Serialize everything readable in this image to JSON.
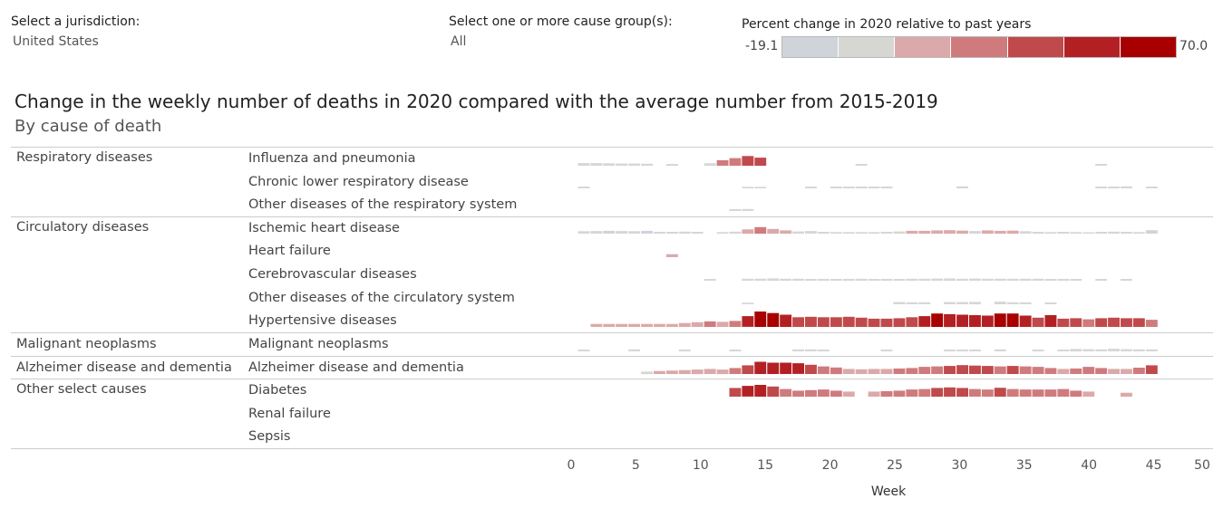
{
  "filters": {
    "jurisdiction": {
      "label": "Select a jurisdiction:",
      "value": "United States"
    },
    "cause_group": {
      "label": "Select one or more cause group(s):",
      "value": "All"
    }
  },
  "legend": {
    "title": "Percent change in 2020 relative to past years",
    "min_label": "-19.1",
    "max_label": "70.0",
    "colors": [
      "#cfd3da",
      "#d6d6d3",
      "#dba9aa",
      "#cf7b7d",
      "#c0494c",
      "#b32024",
      "#a80000"
    ]
  },
  "title": "Change in the weekly number of deaths in 2020 compared with the average number from 2015-2019",
  "subtitle": "By cause of death",
  "chart_data": {
    "type": "heatmap",
    "title": "Change in the weekly number of deaths in 2020 compared with the average number from 2015-2019",
    "subtitle": "By cause of death",
    "xlabel": "Week",
    "x_ticks": [
      "0",
      "5",
      "10",
      "15",
      "20",
      "25",
      "30",
      "35",
      "40",
      "45",
      "50"
    ],
    "xlim": [
      0,
      50
    ],
    "color_scale": {
      "min": -19.1,
      "max": 70.0
    },
    "groups": [
      {
        "name": "Respiratory diseases",
        "causes": [
          {
            "name": "Influenza and pneumonia",
            "weeks": [
              1,
              2,
              3,
              4,
              5,
              6,
              8,
              11,
              12,
              13,
              14,
              15,
              23,
              42
            ],
            "values": [
              -6,
              -6,
              -5,
              -4,
              -4,
              -3,
              -2,
              5,
              20,
              30,
              40,
              32,
              -2,
              -2
            ]
          },
          {
            "name": "Chronic lower respiratory disease",
            "weeks": [
              1,
              14,
              15,
              19,
              21,
              22,
              23,
              24,
              25,
              31,
              42,
              43,
              44,
              46
            ],
            "values": [
              -2,
              -1,
              -1,
              -2,
              -2,
              -2,
              -2,
              -2,
              -2,
              -3,
              -2,
              -2,
              -3,
              -2
            ]
          },
          {
            "name": "Other diseases of the respiratory system",
            "weeks": [
              13,
              14
            ],
            "values": [
              -2,
              -3
            ]
          }
        ]
      },
      {
        "name": "Circulatory diseases",
        "causes": [
          {
            "name": "Ischemic heart disease",
            "weeks": [
              1,
              2,
              3,
              4,
              5,
              6,
              7,
              8,
              9,
              10,
              12,
              13,
              14,
              15,
              16,
              17,
              18,
              19,
              20,
              21,
              22,
              23,
              24,
              25,
              26,
              27,
              28,
              29,
              30,
              31,
              32,
              33,
              34,
              35,
              36,
              37,
              38,
              39,
              40,
              41,
              42,
              43,
              44,
              45,
              46
            ],
            "values": [
              -5,
              -6,
              -7,
              -6,
              -5,
              -7,
              -2,
              -2,
              -3,
              -2,
              -1,
              3,
              14,
              25,
              16,
              9,
              4,
              6,
              2,
              1,
              1,
              1,
              1,
              2,
              4,
              7,
              7,
              9,
              10,
              8,
              6,
              9,
              7,
              8,
              5,
              2,
              1,
              2,
              1,
              0,
              2,
              3,
              2,
              1,
              -10
            ]
          },
          {
            "name": "Heart failure",
            "weeks": [
              8
            ],
            "values": [
              8
            ]
          },
          {
            "name": "Cerebrovascular diseases",
            "weeks": [
              11,
              14,
              15,
              16,
              17,
              18,
              19,
              20,
              21,
              22,
              23,
              24,
              25,
              26,
              27,
              28,
              29,
              30,
              31,
              32,
              33,
              34,
              35,
              36,
              37,
              38,
              39,
              40,
              42,
              44
            ],
            "values": [
              2,
              3,
              3,
              5,
              3,
              3,
              2,
              2,
              2,
              2,
              3,
              2,
              2,
              2,
              3,
              3,
              4,
              5,
              3,
              4,
              3,
              3,
              3,
              3,
              3,
              2,
              2,
              2,
              2,
              2
            ]
          },
          {
            "name": "Other diseases of the circulatory system",
            "weeks": [
              14,
              26,
              27,
              28,
              30,
              31,
              32,
              34,
              35,
              36,
              38
            ],
            "values": [
              -1,
              4,
              3,
              3,
              4,
              4,
              5,
              6,
              3,
              3,
              2
            ]
          },
          {
            "name": "Hypertensive diseases",
            "weeks": [
              2,
              3,
              4,
              5,
              6,
              7,
              8,
              9,
              10,
              11,
              12,
              13,
              14,
              15,
              16,
              17,
              18,
              19,
              20,
              21,
              22,
              23,
              24,
              25,
              26,
              27,
              28,
              29,
              30,
              31,
              32,
              33,
              34,
              35,
              36,
              37,
              38,
              39,
              40,
              41,
              42,
              43,
              44,
              45,
              46
            ],
            "values": [
              8,
              8,
              8,
              8,
              8,
              8,
              8,
              12,
              16,
              20,
              18,
              22,
              45,
              70,
              60,
              52,
              40,
              42,
              40,
              40,
              42,
              38,
              33,
              33,
              35,
              40,
              45,
              58,
              55,
              52,
              50,
              48,
              58,
              58,
              48,
              38,
              50,
              33,
              35,
              30,
              35,
              38,
              35,
              35,
              28
            ]
          }
        ]
      },
      {
        "name": "Malignant neoplasms",
        "causes": [
          {
            "name": "Malignant neoplasms",
            "weeks": [
              1,
              5,
              9,
              13,
              18,
              19,
              20,
              25,
              30,
              31,
              32,
              34,
              37,
              39,
              40,
              41,
              42,
              43,
              44,
              45,
              46
            ],
            "values": [
              -2,
              -3,
              -2,
              -2,
              -3,
              -3,
              -2,
              -2,
              -2,
              -2,
              -2,
              -3,
              -2,
              -2,
              -5,
              -4,
              -3,
              -6,
              -4,
              -3,
              -3
            ]
          }
        ]
      },
      {
        "name": "Alzheimer disease and dementia",
        "causes": [
          {
            "name": "Alzheimer disease and dementia",
            "weeks": [
              6,
              7,
              8,
              9,
              10,
              11,
              12,
              13,
              14,
              15,
              16,
              17,
              18,
              19,
              20,
              21,
              22,
              23,
              24,
              25,
              26,
              27,
              28,
              29,
              30,
              31,
              32,
              33,
              34,
              35,
              36,
              37,
              38,
              39,
              40,
              41,
              42,
              43,
              44,
              45,
              46
            ],
            "values": [
              5,
              8,
              10,
              12,
              15,
              18,
              15,
              22,
              35,
              52,
              48,
              48,
              45,
              38,
              30,
              25,
              18,
              16,
              18,
              18,
              20,
              22,
              28,
              30,
              32,
              36,
              34,
              32,
              30,
              32,
              30,
              28,
              22,
              18,
              20,
              28,
              22,
              18,
              18,
              24,
              35
            ]
          }
        ]
      },
      {
        "name": "Other select causes",
        "causes": [
          {
            "name": "Diabetes",
            "weeks": [
              13,
              14,
              15,
              16,
              17,
              18,
              19,
              20,
              21,
              22,
              24,
              25,
              26,
              27,
              28,
              29,
              30,
              31,
              32,
              33,
              34,
              35,
              36,
              37,
              38,
              39,
              40,
              41,
              44
            ],
            "values": [
              35,
              45,
              50,
              42,
              30,
              22,
              25,
              28,
              22,
              18,
              18,
              20,
              22,
              28,
              30,
              35,
              38,
              35,
              30,
              28,
              36,
              30,
              28,
              28,
              28,
              30,
              22,
              18,
              12
            ]
          },
          {
            "name": "Renal failure",
            "weeks": [],
            "values": []
          },
          {
            "name": "Sepsis",
            "weeks": [],
            "values": []
          }
        ]
      }
    ]
  }
}
